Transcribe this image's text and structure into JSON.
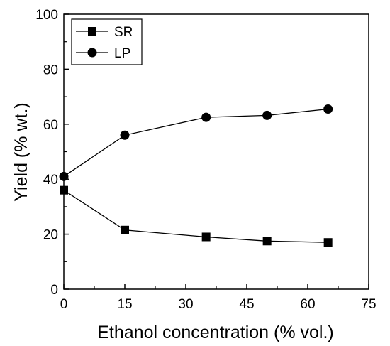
{
  "chart_data": {
    "type": "line",
    "xlabel": "Ethanol concentration (% vol.)",
    "ylabel": "Yield (% wt.)",
    "xlim": [
      0,
      75
    ],
    "ylim": [
      0,
      100
    ],
    "xticks": [
      "0",
      "15",
      "30",
      "45",
      "60",
      "75"
    ],
    "yticks": [
      "0",
      "20",
      "40",
      "60",
      "80",
      "100"
    ],
    "grid": false,
    "legend_position": "top-left",
    "x": [
      0,
      15,
      35,
      50,
      65
    ],
    "series": [
      {
        "name": "SR",
        "marker": "square",
        "values": [
          36,
          21.5,
          19,
          17.5,
          17
        ]
      },
      {
        "name": "LP",
        "marker": "circle",
        "values": [
          41,
          56,
          62.5,
          63.2,
          65.5
        ]
      }
    ]
  }
}
